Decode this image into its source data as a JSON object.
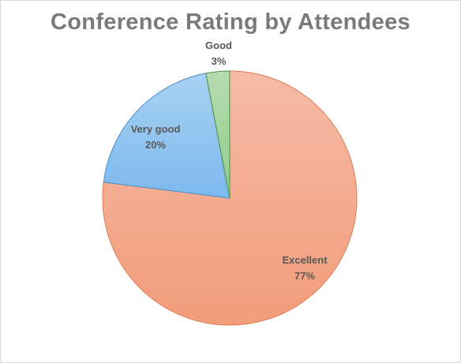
{
  "chart_data": {
    "type": "pie",
    "title": "Conference Rating by Attendees",
    "categories": [
      "Excellent",
      "Very good",
      "Good"
    ],
    "values": [
      77,
      20,
      3
    ],
    "labels": [
      "77%",
      "20%",
      "3%"
    ],
    "colors": {
      "Excellent": {
        "top": "#f5bba6",
        "bottom": "#f29c7a",
        "stroke": "#e27a4f"
      },
      "Very good": {
        "top": "#a8d2f4",
        "bottom": "#7cb8ec",
        "stroke": "#4a8fd0"
      },
      "Good": {
        "top": "#b5dcb0",
        "bottom": "#93cc8d",
        "stroke": "#4f8f3f"
      }
    },
    "start_angle": "12 o'clock",
    "direction": "clockwise",
    "legend": "none"
  }
}
